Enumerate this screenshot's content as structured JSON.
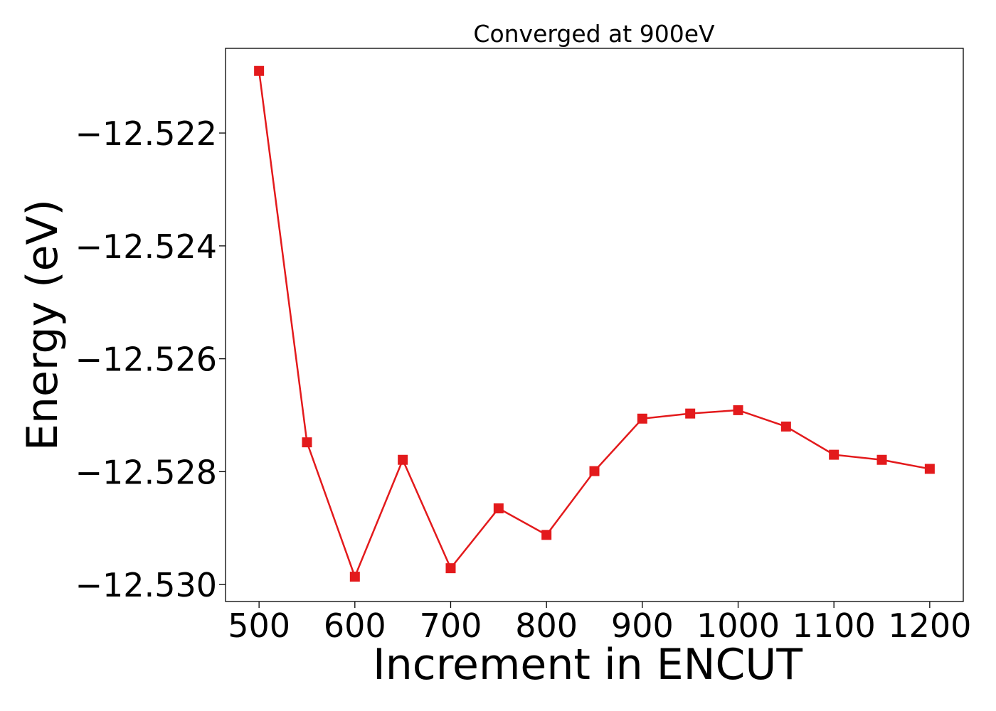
{
  "chart_data": {
    "type": "line",
    "title": "Converged at 900eV",
    "xlabel": "Increment in ENCUT",
    "ylabel": "Energy (eV)",
    "xlim": [
      465,
      1235
    ],
    "ylim": [
      -12.5303,
      -12.5205
    ],
    "grid": false,
    "color": "#e31a1c",
    "marker": "square",
    "x_ticks": [
      500,
      600,
      700,
      800,
      900,
      1000,
      1100,
      1200
    ],
    "x_tick_labels": [
      "500",
      "600",
      "700",
      "800",
      "900",
      "1000",
      "1100",
      "1200"
    ],
    "y_ticks": [
      -12.522,
      -12.524,
      -12.526,
      -12.528,
      -12.53
    ],
    "y_tick_labels": [
      "−12.522",
      "−12.524",
      "−12.526",
      "−12.528",
      "−12.530"
    ],
    "series": [
      {
        "x": [
          500,
          550,
          600,
          650,
          700,
          750,
          800,
          850,
          900,
          950,
          1000,
          1050,
          1100,
          1150,
          1200
        ],
        "values": [
          -12.5209,
          -12.52748,
          -12.52986,
          -12.52779,
          -12.52971,
          -12.52865,
          -12.52912,
          -12.52799,
          -12.52706,
          -12.52697,
          -12.52691,
          -12.5272,
          -12.5277,
          -12.52779,
          -12.52795
        ]
      }
    ]
  }
}
